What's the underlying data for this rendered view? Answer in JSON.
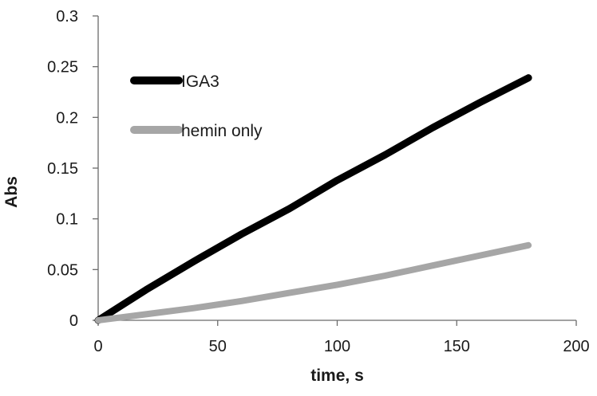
{
  "chart_data": {
    "type": "line",
    "title": "",
    "xlabel": "time, s",
    "ylabel": "Abs",
    "xlim": [
      0,
      200
    ],
    "ylim": [
      0,
      0.3
    ],
    "x_ticks": [
      0,
      50,
      100,
      150,
      200
    ],
    "x_tick_labels": [
      "0",
      "50",
      "100",
      "150",
      "200"
    ],
    "y_ticks": [
      0,
      0.05,
      0.1,
      0.15,
      0.2,
      0.25,
      0.3
    ],
    "y_tick_labels": [
      "0",
      "0.05",
      "0.1",
      "0.15",
      "0.2",
      "0.25",
      "0.3"
    ],
    "grid": false,
    "legend_position": "top-left",
    "series": [
      {
        "name": "IGA3",
        "color": "#000000",
        "x": [
          0,
          20,
          40,
          60,
          80,
          100,
          120,
          140,
          160,
          180
        ],
        "y": [
          0,
          0.03,
          0.058,
          0.085,
          0.11,
          0.138,
          0.163,
          0.19,
          0.215,
          0.239
        ]
      },
      {
        "name": "hemin only",
        "color": "#a6a6a6",
        "x": [
          0,
          20,
          40,
          60,
          80,
          100,
          120,
          140,
          160,
          180
        ],
        "y": [
          0,
          0.006,
          0.012,
          0.019,
          0.027,
          0.035,
          0.044,
          0.054,
          0.064,
          0.074
        ]
      }
    ]
  }
}
